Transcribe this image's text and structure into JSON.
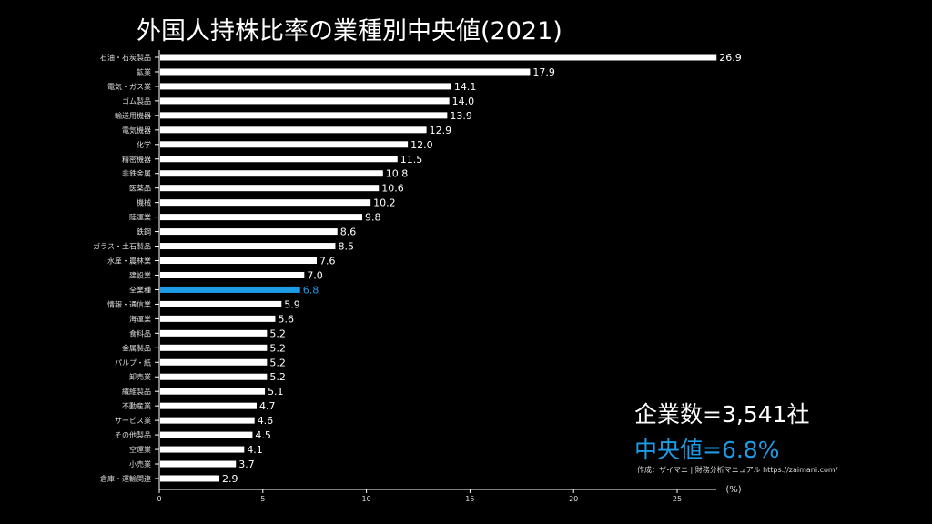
{
  "chart_data": {
    "type": "bar",
    "orientation": "horizontal",
    "title": "外国人持株比率の業種別中央値(2021)",
    "xlabel": "(%)",
    "xlim": [
      0,
      27
    ],
    "xticks": [
      0,
      5,
      10,
      15,
      20,
      25
    ],
    "highlight_category": "全業種",
    "colors": {
      "bar": "#ffffff",
      "highlight": "#1e9be6",
      "background": "#000000"
    },
    "categories": [
      "石油・石炭製品",
      "鉱業",
      "電気・ガス業",
      "ゴム製品",
      "輸送用機器",
      "電気機器",
      "化学",
      "精密機器",
      "非鉄金属",
      "医薬品",
      "機械",
      "陸運業",
      "鉄鋼",
      "ガラス・土石製品",
      "水産・農林業",
      "建設業",
      "全業種",
      "情報・通信業",
      "海運業",
      "食料品",
      "金属製品",
      "パルプ・紙",
      "卸売業",
      "繊維製品",
      "不動産業",
      "サービス業",
      "その他製品",
      "空運業",
      "小売業",
      "倉庫・運輸関連"
    ],
    "values": [
      26.9,
      17.9,
      14.1,
      14.0,
      13.9,
      12.9,
      12.0,
      11.5,
      10.8,
      10.6,
      10.2,
      9.8,
      8.6,
      8.5,
      7.6,
      7.0,
      6.8,
      5.9,
      5.6,
      5.2,
      5.2,
      5.2,
      5.2,
      5.1,
      4.7,
      4.6,
      4.5,
      4.1,
      3.7,
      2.9
    ],
    "value_labels": [
      "26.9",
      "17.9",
      "14.1",
      "14.0",
      "13.9",
      "12.9",
      "12.0",
      "11.5",
      "10.8",
      "10.6",
      "10.2",
      "9.8",
      "8.6",
      "8.5",
      "7.6",
      "7.0",
      "6.8",
      "5.9",
      "5.6",
      "5.2",
      "5.2",
      "5.2",
      "5.2",
      "5.1",
      "4.7",
      "4.6",
      "4.5",
      "4.1",
      "3.7",
      "2.9"
    ]
  },
  "annotations": {
    "company_count": "企業数=3,541社",
    "median": "中央値=6.8%",
    "credit": "作成：ザイマニ | 財務分析マニュアル https://zaimani.com/"
  }
}
